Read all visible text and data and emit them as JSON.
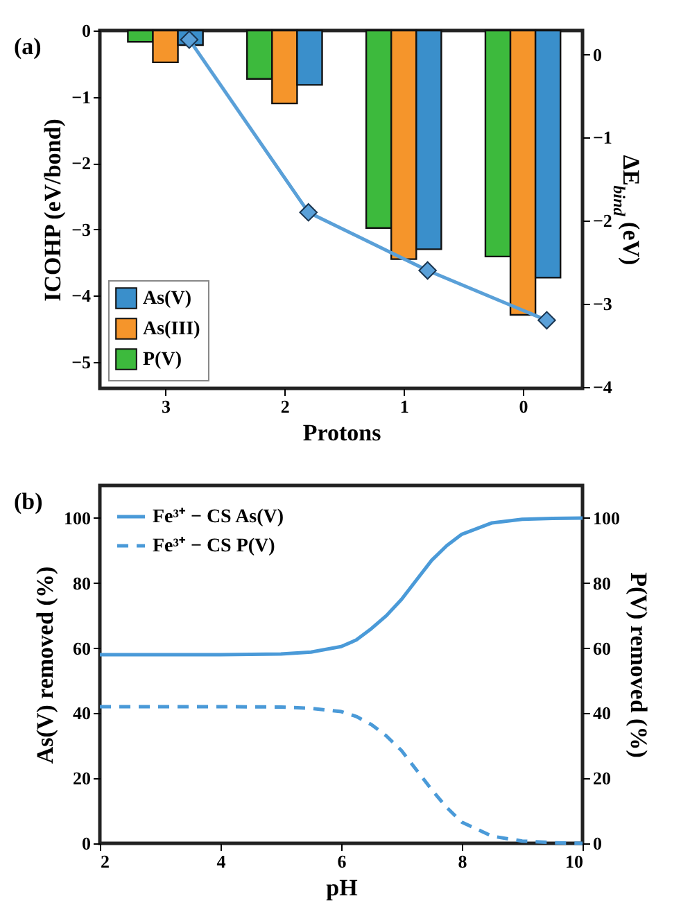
{
  "chart_data": [
    {
      "type": "bar",
      "annotations": [
        "(a)"
      ],
      "xlabel": "Protons",
      "ylabel": "ICOHP (eV/bond)",
      "y2label": "ΔE$_{bind}$ (eV)",
      "x": [
        3,
        2,
        1,
        0
      ],
      "xlim": [
        3.55,
        -0.5
      ],
      "xticks": [
        3,
        2,
        1,
        0
      ],
      "ylim": [
        -5.4,
        0
      ],
      "yticks": [
        0,
        -1,
        -2,
        -3,
        -4,
        -5
      ],
      "y2lim": [
        -4.02,
        0.29
      ],
      "y2ticks": [
        0,
        -1,
        -2,
        -3,
        -4
      ],
      "legend": "bottom left",
      "grid": false,
      "series": [
        {
          "name": "P(V)",
          "color": "#3dba3d",
          "values": [
            -0.17,
            -0.73,
            -2.98,
            -3.41
          ]
        },
        {
          "name": "As(III)",
          "color": "#f5952b",
          "values": [
            -0.48,
            -1.1,
            -3.45,
            -4.29
          ]
        },
        {
          "name": "As(V)",
          "color": "#3a8fcb",
          "values": [
            -0.22,
            -0.82,
            -3.3,
            -3.73
          ]
        },
        {
          "type": "line",
          "axis": "y2",
          "color": "#5aa0d8",
          "marker": "diamond",
          "x": [
            2.8,
            1.8,
            0.8,
            -0.2
          ],
          "values": [
            0.18,
            -1.9,
            -2.6,
            -3.2
          ]
        }
      ]
    },
    {
      "type": "line",
      "annotations": [
        "(b)"
      ],
      "xlabel": "pH",
      "ylabel": "As(V) removed (%)",
      "y2label": "P(V) removed (%)",
      "xlim": [
        2,
        10
      ],
      "xticks": [
        2,
        4,
        6,
        8,
        10
      ],
      "ylim": [
        0,
        110
      ],
      "yticks": [
        0,
        20,
        40,
        60,
        80,
        100
      ],
      "y2lim": [
        0,
        110
      ],
      "y2ticks": [
        0,
        20,
        40,
        60,
        80,
        100
      ],
      "legend": "top left",
      "grid": false,
      "marker": "none",
      "x": [
        2,
        3,
        4,
        5,
        5.5,
        6,
        6.25,
        6.5,
        6.75,
        7,
        7.25,
        7.5,
        7.75,
        8,
        8.5,
        9,
        9.5,
        10
      ],
      "series": [
        {
          "name": "Fe³⁺ − CS As(V)",
          "color": "#4a9ad8",
          "line_style": "solid",
          "values": [
            58,
            58,
            58,
            58.2,
            58.8,
            60.5,
            62.5,
            66,
            70,
            75,
            81,
            87,
            91.5,
            95,
            98.5,
            99.6,
            99.9,
            100
          ]
        },
        {
          "name": "Fe³⁺ − CS P(V)",
          "color": "#4a9ad8",
          "line_style": "dashed",
          "axis": "y2",
          "values": [
            42,
            42,
            42,
            41.9,
            41.5,
            40.5,
            39,
            36.5,
            33,
            28.5,
            22.5,
            16.5,
            11,
            6.5,
            2.2,
            0.7,
            0.2,
            0
          ]
        }
      ]
    }
  ]
}
